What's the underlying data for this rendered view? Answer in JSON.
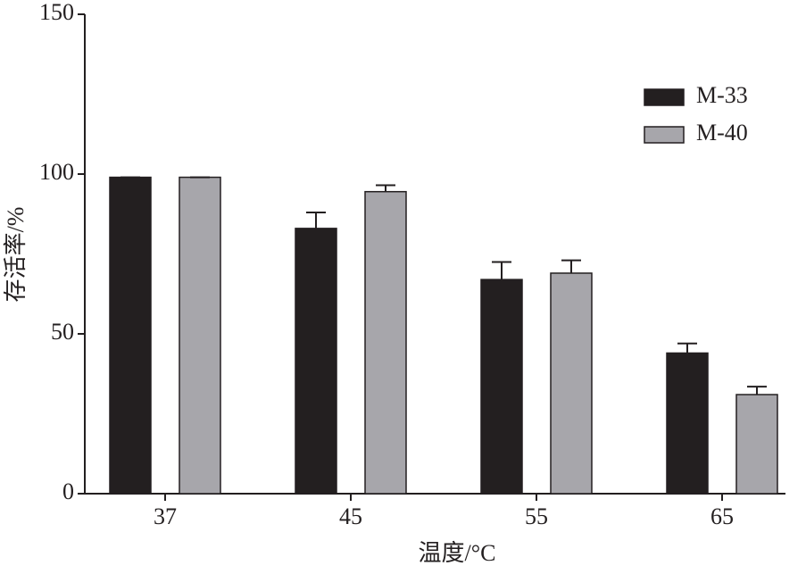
{
  "chart_data": {
    "type": "bar",
    "xlabel": "温度/°C",
    "ylabel": "存活率/%",
    "categories": [
      "37",
      "45",
      "55",
      "65"
    ],
    "series": [
      {
        "name": "M-33",
        "color": "#231f20",
        "values": [
          99,
          83,
          67,
          44
        ],
        "errors": [
          0,
          5,
          5.5,
          3
        ]
      },
      {
        "name": "M-40",
        "color": "#a7a6ab",
        "values": [
          99,
          94.5,
          69,
          31
        ],
        "errors": [
          0,
          2,
          4,
          2.5
        ]
      }
    ],
    "ylim": [
      0,
      150
    ],
    "yticks": [
      0,
      50,
      100,
      150
    ],
    "grid": false,
    "legend": "upper right"
  }
}
